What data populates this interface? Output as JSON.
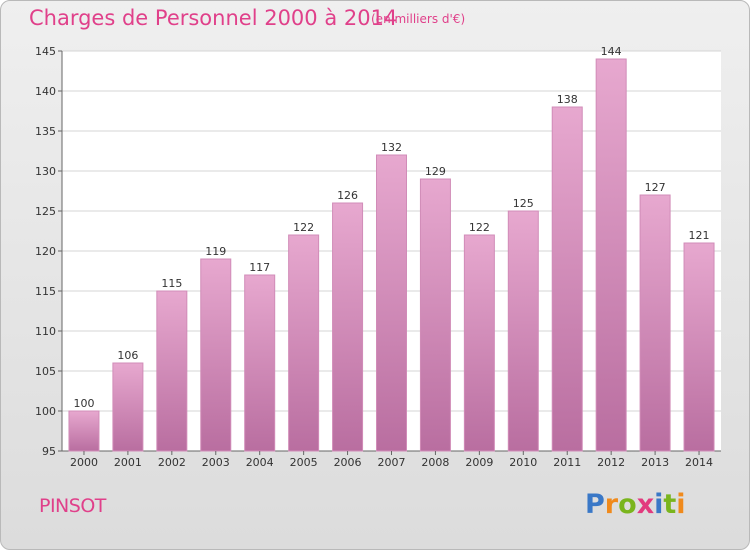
{
  "header": {
    "title": "Charges de Personnel 2000 à 2014",
    "subtitle": "(en milliers d'€)"
  },
  "footer": {
    "commune": "PINSOT",
    "logo_text": "Proxiti",
    "logo_letters": [
      "P",
      "r",
      "o",
      "x",
      "i",
      "t",
      "i"
    ],
    "logo_colors": [
      "#3a78c7",
      "#f08a1c",
      "#7ab51d",
      "#e23a7e",
      "#3a78c7",
      "#7ab51d",
      "#f08a1c"
    ]
  },
  "colors": {
    "bar_top": "#e7a8cf",
    "bar_bottom": "#b96ea0",
    "accent": "#e0408a"
  },
  "chart_data": {
    "type": "bar",
    "title": "Charges de Personnel 2000 à 2014",
    "subtitle": "(en milliers d'€)",
    "categories": [
      "2000",
      "2001",
      "2002",
      "2003",
      "2004",
      "2005",
      "2006",
      "2007",
      "2008",
      "2009",
      "2010",
      "2011",
      "2012",
      "2013",
      "2014"
    ],
    "values": [
      100,
      106,
      115,
      119,
      117,
      122,
      126,
      132,
      129,
      122,
      125,
      138,
      144,
      127,
      121
    ],
    "ylim": [
      95,
      145
    ],
    "yticks": [
      95,
      100,
      105,
      110,
      115,
      120,
      125,
      130,
      135,
      140,
      145
    ],
    "grid": true,
    "xlabel": "",
    "ylabel": ""
  }
}
